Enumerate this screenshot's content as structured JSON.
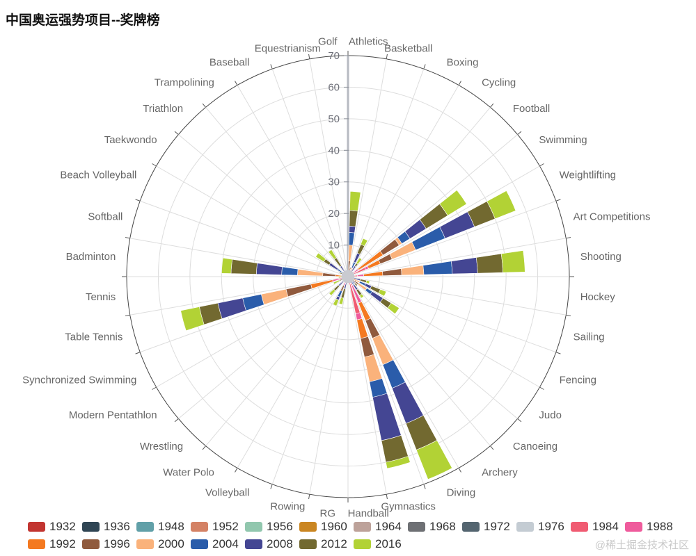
{
  "title": "中国奥运强势项目--奖牌榜",
  "watermark": "@稀土掘金技术社区",
  "chart_data": {
    "type": "bar",
    "layout": "polar-stacked",
    "start_angle_deg": 90,
    "direction": "clockwise",
    "grid": true,
    "legend_position": "bottom",
    "radial_axis": {
      "min": 0,
      "max": 70,
      "ticks": [
        10,
        20,
        30,
        40,
        50,
        60,
        70
      ]
    },
    "categories": [
      "Athletics",
      "Basketball",
      "Boxing",
      "Cycling",
      "Football",
      "Swimming",
      "Weightlifting",
      "Art Competitions",
      "Shooting",
      "Hockey",
      "Sailing",
      "Fencing",
      "Judo",
      "Canoeing",
      "Archery",
      "Diving",
      "Gymnastics",
      "Handball",
      "RG",
      "Rowing",
      "Volleyball",
      "Water Polo",
      "Wrestling",
      "Modern Pentathlon",
      "Synchronized Swimming",
      "Table Tennis",
      "Tennis",
      "Badminton",
      "Softball",
      "Beach Volleyball",
      "Taekwondo",
      "Triathlon",
      "Trampolining",
      "Baseball",
      "Equestrianism",
      "Golf"
    ],
    "series": [
      {
        "name": "1932",
        "color": "#c23531",
        "values": [
          0,
          0,
          0,
          0,
          0,
          0,
          0,
          0,
          0,
          0,
          0,
          0,
          0,
          0,
          0,
          0,
          0,
          0,
          0,
          0,
          0,
          0,
          0,
          0,
          0,
          0,
          0,
          0,
          0,
          0,
          0,
          0,
          0,
          0,
          0,
          0
        ]
      },
      {
        "name": "1936",
        "color": "#2f4554",
        "values": [
          0,
          0,
          0,
          0,
          0,
          0,
          0,
          0,
          0,
          0,
          0,
          0,
          0,
          0,
          0,
          0,
          0,
          0,
          0,
          0,
          0,
          0,
          0,
          0,
          0,
          0,
          0,
          0,
          0,
          0,
          0,
          0,
          0,
          0,
          0,
          0
        ]
      },
      {
        "name": "1948",
        "color": "#61a0a8",
        "values": [
          0,
          0,
          0,
          0,
          0,
          0,
          0,
          0,
          0,
          0,
          0,
          0,
          0,
          0,
          0,
          0,
          0,
          0,
          0,
          0,
          0,
          0,
          0,
          0,
          0,
          0,
          0,
          0,
          0,
          0,
          0,
          0,
          0,
          0,
          0,
          0
        ]
      },
      {
        "name": "1952",
        "color": "#d48265",
        "values": [
          0,
          0,
          0,
          0,
          0,
          0,
          0,
          0,
          0,
          0,
          0,
          0,
          0,
          0,
          0,
          0,
          0,
          0,
          0,
          0,
          0,
          0,
          0,
          0,
          0,
          0,
          0,
          0,
          0,
          0,
          0,
          0,
          0,
          0,
          0,
          0
        ]
      },
      {
        "name": "1956",
        "color": "#91c7ae",
        "values": [
          0,
          0,
          0,
          0,
          0,
          0,
          0,
          0,
          0,
          0,
          0,
          0,
          0,
          0,
          0,
          0,
          0,
          0,
          0,
          0,
          0,
          0,
          0,
          0,
          0,
          0,
          0,
          0,
          0,
          0,
          0,
          0,
          0,
          0,
          0,
          0
        ]
      },
      {
        "name": "1960",
        "color": "#ca8622",
        "values": [
          0,
          0,
          0,
          0,
          0,
          0,
          0,
          0,
          0,
          0,
          0,
          0,
          0,
          0,
          0,
          0,
          0,
          0,
          0,
          0,
          0,
          0,
          0,
          0,
          0,
          0,
          0,
          0,
          0,
          0,
          0,
          0,
          0,
          0,
          0,
          0
        ]
      },
      {
        "name": "1964",
        "color": "#bda29a",
        "values": [
          0,
          0,
          0,
          0,
          0,
          0,
          0,
          0,
          0,
          0,
          0,
          0,
          0,
          0,
          0,
          0,
          0,
          0,
          0,
          0,
          0,
          0,
          0,
          0,
          0,
          0,
          0,
          0,
          0,
          0,
          0,
          0,
          0,
          0,
          0,
          0
        ]
      },
      {
        "name": "1968",
        "color": "#6e7074",
        "values": [
          0,
          0,
          0,
          0,
          0,
          0,
          0,
          0,
          0,
          0,
          0,
          0,
          0,
          0,
          0,
          0,
          0,
          0,
          0,
          0,
          0,
          0,
          0,
          0,
          0,
          0,
          0,
          0,
          0,
          0,
          0,
          0,
          0,
          0,
          0,
          0
        ]
      },
      {
        "name": "1972",
        "color": "#546570",
        "values": [
          0,
          0,
          0,
          0,
          0,
          0,
          0,
          0,
          0,
          0,
          0,
          0,
          0,
          0,
          0,
          0,
          0,
          0,
          0,
          0,
          0,
          0,
          0,
          0,
          0,
          0,
          0,
          0,
          0,
          0,
          0,
          0,
          0,
          0,
          0,
          0
        ]
      },
      {
        "name": "1976",
        "color": "#c4ccd3",
        "values": [
          0,
          0,
          0,
          0,
          0,
          0,
          0,
          0,
          0,
          0,
          0,
          0,
          0,
          0,
          0,
          0,
          0,
          0,
          0,
          0,
          0,
          0,
          0,
          0,
          0,
          0,
          0,
          0,
          0,
          0,
          0,
          0,
          0,
          0,
          0,
          0
        ]
      },
      {
        "name": "1984",
        "color": "#f05b72",
        "values": [
          0,
          1,
          0,
          0,
          0,
          0,
          6,
          0,
          3,
          0,
          0,
          2,
          0,
          0,
          0,
          3,
          12,
          1,
          0,
          0,
          2,
          0,
          0,
          0,
          0,
          0,
          0,
          0,
          0,
          0,
          0,
          0,
          0,
          0,
          0,
          0
        ]
      },
      {
        "name": "1988",
        "color": "#ef5b9c",
        "values": [
          0,
          0,
          0,
          0,
          0,
          4,
          1,
          0,
          2,
          0,
          0,
          0,
          0,
          0,
          0,
          6,
          2,
          0,
          0,
          0,
          1,
          0,
          0,
          0,
          0,
          5,
          0,
          0,
          0,
          0,
          0,
          0,
          0,
          0,
          0,
          0
        ]
      },
      {
        "name": "1992",
        "color": "#f47920",
        "values": [
          2,
          1,
          1,
          0,
          0,
          9,
          4,
          0,
          6,
          0,
          0,
          1,
          2,
          0,
          0,
          6,
          6,
          0,
          0,
          0,
          0,
          0,
          0,
          0,
          0,
          7,
          0,
          4,
          0,
          0,
          0,
          0,
          0,
          0,
          0,
          0
        ]
      },
      {
        "name": "1996",
        "color": "#905a3d",
        "values": [
          3,
          1,
          1,
          0,
          1,
          6,
          4,
          0,
          6,
          0,
          0,
          0,
          2,
          0,
          0,
          6,
          6,
          0,
          0,
          0,
          2,
          0,
          0,
          0,
          0,
          8,
          0,
          4,
          1,
          0,
          0,
          0,
          0,
          0,
          0,
          0
        ]
      },
      {
        "name": "2000",
        "color": "#fab27b",
        "values": [
          5,
          0,
          1,
          1,
          0,
          1,
          8,
          0,
          7,
          0,
          1,
          1,
          3,
          0,
          1,
          9,
          8,
          0,
          0,
          0,
          0,
          0,
          1,
          0,
          0,
          8,
          0,
          8,
          1,
          0,
          2,
          0,
          0,
          0,
          0,
          0
        ]
      },
      {
        "name": "2004",
        "color": "#2a5caa",
        "values": [
          4,
          0,
          2,
          1,
          0,
          3,
          10,
          0,
          9,
          0,
          1,
          2,
          2,
          1,
          2,
          8,
          5,
          0,
          0,
          1,
          2,
          0,
          1,
          0,
          0,
          6,
          1,
          5,
          0,
          0,
          2,
          0,
          1,
          0,
          0,
          0
        ]
      },
      {
        "name": "2008",
        "color": "#444693",
        "values": [
          2,
          0,
          3,
          2,
          0,
          6,
          10,
          0,
          8,
          1,
          2,
          2,
          4,
          2,
          2,
          12,
          14,
          0,
          1,
          3,
          1,
          0,
          2,
          0,
          1,
          8,
          1,
          8,
          0,
          2,
          3,
          0,
          3,
          0,
          0,
          0
        ]
      },
      {
        "name": "2012",
        "color": "#726930",
        "values": [
          5,
          0,
          3,
          1,
          0,
          8,
          7,
          0,
          8,
          0,
          2,
          3,
          3,
          1,
          2,
          9,
          7,
          0,
          1,
          3,
          0,
          0,
          2,
          1,
          2,
          6,
          0,
          8,
          0,
          1,
          2,
          0,
          3,
          0,
          0,
          0
        ]
      },
      {
        "name": "2016",
        "color": "#b2d235",
        "values": [
          6,
          0,
          2,
          2,
          0,
          7,
          7,
          0,
          7,
          0,
          1,
          2,
          3,
          0,
          1,
          10,
          2,
          0,
          0,
          2,
          2,
          0,
          2,
          0,
          2,
          6,
          1,
          3,
          0,
          0,
          3,
          0,
          3,
          0,
          0,
          1
        ]
      }
    ]
  }
}
